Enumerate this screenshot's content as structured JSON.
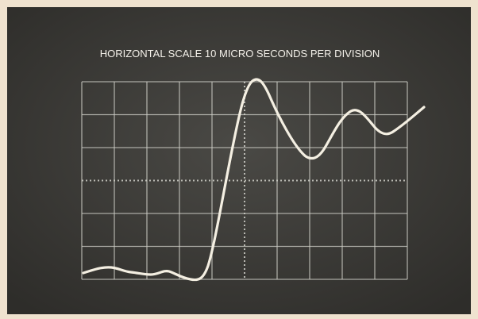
{
  "screen": {
    "caption": "HORIZONTAL SCALE 10 MICRO SECONDS PER DIVISION"
  }
}
